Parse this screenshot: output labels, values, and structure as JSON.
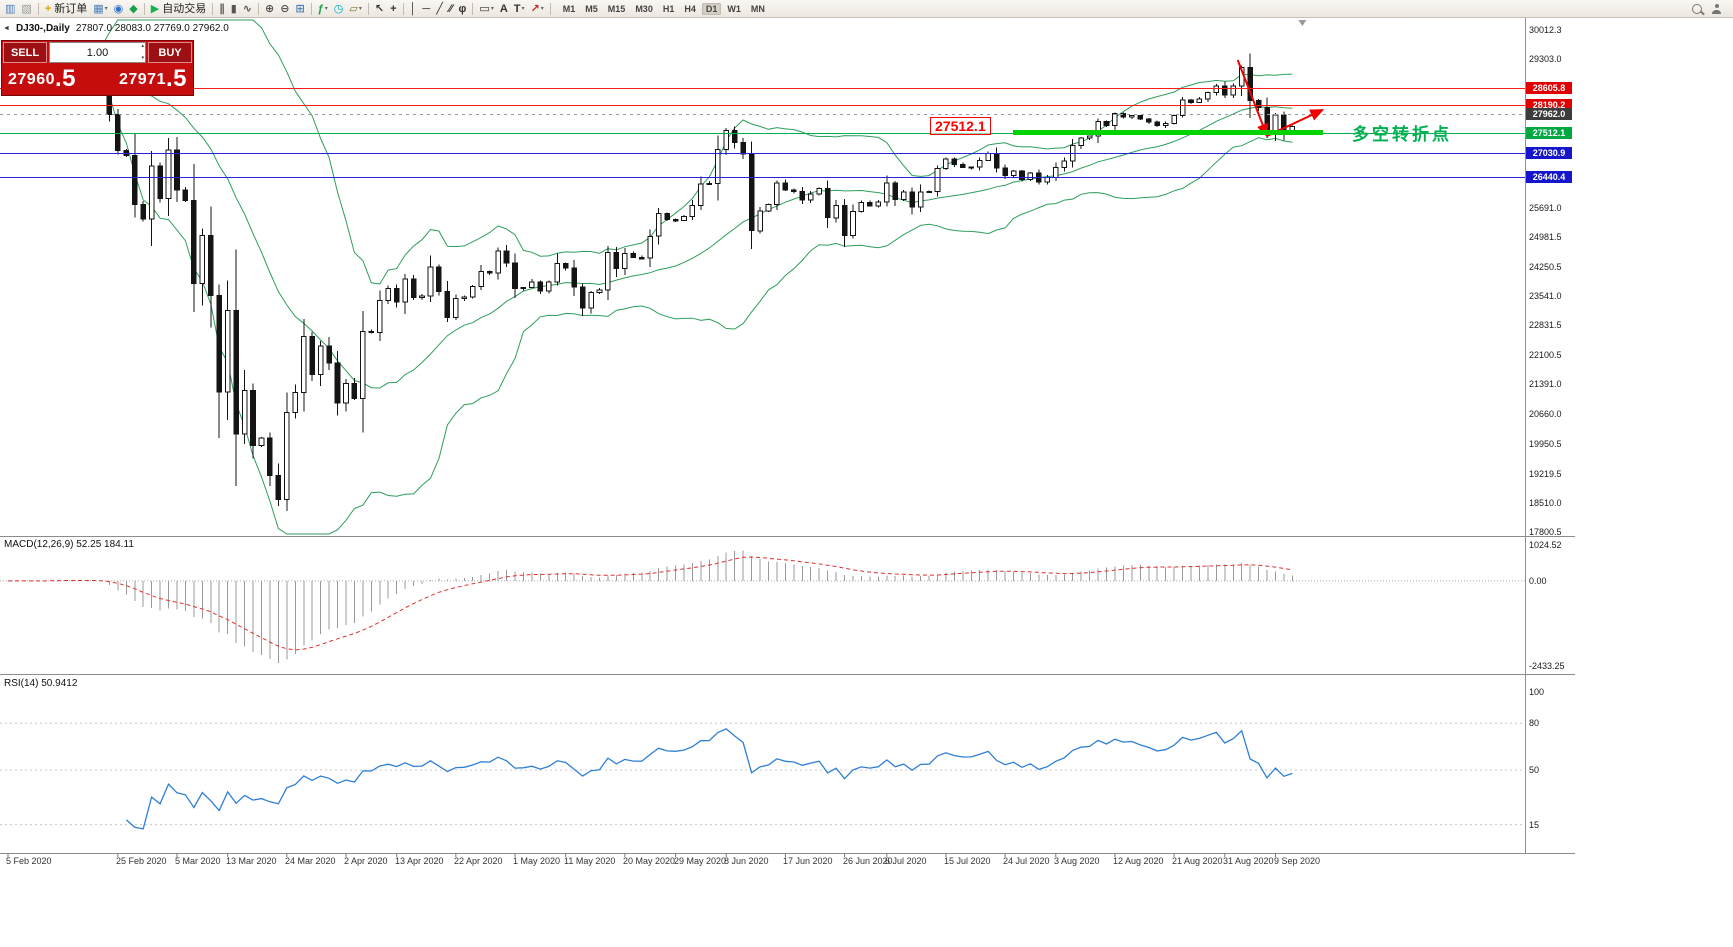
{
  "toolbar": {
    "items": [
      {
        "n": "symbol-chart-icon",
        "g": "▥",
        "c": "#4a7ebb"
      },
      {
        "n": "profile-icon",
        "g": "▧",
        "c": "#999999"
      },
      {
        "n": "separator"
      },
      {
        "n": "new-order-button",
        "g": "+",
        "c": "#e0a000",
        "l": "新订单"
      },
      {
        "n": "chart-windows-icon",
        "g": "▦",
        "c": "#4a7ebb",
        "caret": true
      },
      {
        "n": "quotes-icon",
        "g": "◉",
        "c": "#2f6fd0"
      },
      {
        "n": "algo-icon",
        "g": "◆",
        "c": "#18a04a"
      },
      {
        "n": "separator"
      },
      {
        "n": "autotrading-button",
        "g": "▶",
        "c": "#13b24c",
        "l": "自动交易"
      },
      {
        "n": "separator"
      },
      {
        "n": "bars-type-icon",
        "g": "∥",
        "c": "#555555"
      },
      {
        "n": "candles-type-icon",
        "g": "▮",
        "c": "#555555"
      },
      {
        "n": "line-type-icon",
        "g": "∿",
        "c": "#555555"
      },
      {
        "n": "separator"
      },
      {
        "n": "zoom-in-icon",
        "g": "⊕",
        "c": "#555555"
      },
      {
        "n": "zoom-out-icon",
        "g": "⊖",
        "c": "#555555"
      },
      {
        "n": "tile-windows-icon",
        "g": "⊞",
        "c": "#4a7ebb"
      },
      {
        "n": "separator"
      },
      {
        "n": "indicators-icon",
        "g": "ƒ",
        "c": "#18a04a",
        "caret": true
      },
      {
        "n": "period-clock-icon",
        "g": "◷",
        "c": "#00a8c8"
      },
      {
        "n": "templates-icon",
        "g": "▱",
        "c": "#8a6d3b",
        "caret": true
      },
      {
        "n": "separator"
      },
      {
        "n": "cursor-icon",
        "g": "↖",
        "c": "#333333"
      },
      {
        "n": "crosshair-icon",
        "g": "+",
        "c": "#333333"
      },
      {
        "n": "separator"
      },
      {
        "n": "vertical-line-icon",
        "g": "│",
        "c": "#333333"
      },
      {
        "n": "horizontal-line-icon",
        "g": "─",
        "c": "#333333"
      },
      {
        "n": "trendline-icon",
        "g": "╱",
        "c": "#333333"
      },
      {
        "n": "channel-icon",
        "g": "∕∕",
        "c": "#333333"
      },
      {
        "n": "fibonacci-icon",
        "g": "φ",
        "c": "#333333"
      },
      {
        "n": "separator"
      },
      {
        "n": "shapes-icon",
        "g": "▭",
        "c": "#333333",
        "caret": true
      },
      {
        "n": "text-icon",
        "g": "A",
        "c": "#333333"
      },
      {
        "n": "label-icon",
        "g": "T",
        "c": "#333333",
        "caret": true
      },
      {
        "n": "arrows-icon",
        "g": "↗",
        "c": "#cc2222",
        "caret": true
      },
      {
        "n": "separator"
      }
    ],
    "timeframes": [
      "M1",
      "M5",
      "M15",
      "M30",
      "H1",
      "H4",
      "D1",
      "W1",
      "MN"
    ],
    "active_timeframe": "D1"
  },
  "trade_panel": {
    "sell_label": "SELL",
    "buy_label": "BUY",
    "volume": "1.00",
    "sell_price_main": "27960",
    "sell_price_frac": ".5",
    "buy_price_main": "27971",
    "buy_price_frac": ".5"
  },
  "chart_header": {
    "marker": "◄",
    "title": "DJ30-,Daily",
    "ohlc": "27807.0 28083.0 27769.0 27962.0"
  },
  "annotations": {
    "support_price_label": "27512.1",
    "cn_note": "多空转折点"
  },
  "macd": {
    "label": "MACD(12,26,9) 52.25 184.11",
    "scale_max": "1024.52",
    "scale_zero": "0.00",
    "scale_min": "-2433.25"
  },
  "rsi": {
    "label": "RSI(14) 50.9412",
    "level_100": "100",
    "level_80": "80",
    "level_50": "50",
    "level_15": "15"
  },
  "chart_data": {
    "type": "candlestick",
    "symbol": "DJ30-",
    "timeframe": "Daily",
    "title": "DJ30-,Daily",
    "current_ohlc": {
      "open": 27807.0,
      "high": 28083.0,
      "low": 27769.0,
      "close": 27962.0
    },
    "y_range": [
      17800.5,
      30012.3
    ],
    "axis_labels": [
      "30012.3",
      "29303.0",
      "25691.0",
      "24981.5",
      "24250.5",
      "23541.0",
      "22831.5",
      "22100.5",
      "21391.0",
      "20660.0",
      "19950.5",
      "19219.5",
      "18510.0",
      "17800.5"
    ],
    "hlines": [
      {
        "price": 28605.8,
        "label": "28605.8",
        "color": "#ff1a1a",
        "badge": "#e00000"
      },
      {
        "price": 28190.2,
        "label": "28190.2",
        "color": "#ff1a1a",
        "badge": "#e00000"
      },
      {
        "price": 27962.0,
        "label": "27962.0",
        "color": "#9a9a9a",
        "badge": "#3c3c3c",
        "dash": true
      },
      {
        "price": 27512.1,
        "label": "27512.1",
        "color": "#00b050",
        "badge": "#00a843"
      },
      {
        "price": 27030.9,
        "label": "27030.9",
        "color": "#2424d8",
        "badge": "#1515cc"
      },
      {
        "price": 26440.4,
        "label": "26440.4",
        "color": "#2424d8",
        "badge": "#1515cc"
      }
    ],
    "closes": [
      29290,
      29380,
      29103,
      29277,
      29276,
      29551,
      29423,
      29398,
      29232,
      29348,
      29220,
      28992,
      27961,
      27081,
      26958,
      25767,
      25409,
      26703,
      25917,
      27091,
      26121,
      25865,
      23851,
      25018,
      23553,
      21201,
      23186,
      20188,
      21237,
      19899,
      20087,
      19174,
      18592,
      20705,
      21200,
      22552,
      21637,
      22327,
      21917,
      20944,
      21413,
      21053,
      22680,
      22654,
      23434,
      23719,
      23391,
      23950,
      23504,
      23538,
      24242,
      23650,
      23018,
      23476,
      23515,
      23775,
      24134,
      24102,
      24634,
      24346,
      23724,
      23749,
      23883,
      23665,
      23876,
      24331,
      24222,
      23765,
      23248,
      23625,
      23685,
      24597,
      24207,
      24576,
      24474,
      24465,
      24995,
      25548,
      25401,
      25383,
      25475,
      25743,
      26270,
      26282,
      27111,
      27572,
      27272,
      26990,
      25128,
      25605,
      25763,
      26290,
      26120,
      26080,
      25871,
      26025,
      26156,
      25445,
      25746,
      25016,
      25596,
      25813,
      25735,
      25827,
      26287,
      25890,
      26067,
      25706,
      26075,
      26086,
      26643,
      26870,
      26735,
      26672,
      26681,
      26840,
      27006,
      26652,
      26470,
      26585,
      26379,
      26539,
      26313,
      26428,
      26664,
      26828,
      27202,
      27387,
      27433,
      27791,
      27686,
      27977,
      27897,
      27931,
      27844,
      27778,
      27693,
      27740,
      27930,
      28308,
      28248,
      28332,
      28492,
      28654,
      28430,
      28645,
      29101,
      28293,
      28133,
      27501,
      27940,
      27535,
      27666
    ],
    "date_labels": [
      {
        "text": "5 Feb 2020",
        "i": 0
      },
      {
        "text": "25 Feb 2020",
        "i": 13
      },
      {
        "text": "5 Mar 2020",
        "i": 20
      },
      {
        "text": "13 Mar 2020",
        "i": 26
      },
      {
        "text": "24 Mar 2020",
        "i": 33
      },
      {
        "text": "2 Apr 2020",
        "i": 40
      },
      {
        "text": "13 Apr 2020",
        "i": 46
      },
      {
        "text": "22 Apr 2020",
        "i": 53
      },
      {
        "text": "1 May 2020",
        "i": 60
      },
      {
        "text": "11 May 2020",
        "i": 66
      },
      {
        "text": "20 May 2020",
        "i": 73
      },
      {
        "text": "29 May 2020",
        "i": 79
      },
      {
        "text": "8 Jun 2020",
        "i": 85
      },
      {
        "text": "17 Jun 2020",
        "i": 92
      },
      {
        "text": "26 Jun 2020",
        "i": 99
      },
      {
        "text": "6 Jul 2020",
        "i": 104
      },
      {
        "text": "15 Jul 2020",
        "i": 111
      },
      {
        "text": "24 Jul 2020",
        "i": 118
      },
      {
        "text": "3 Aug 2020",
        "i": 124
      },
      {
        "text": "12 Aug 2020",
        "i": 131
      },
      {
        "text": "21 Aug 2020",
        "i": 138
      },
      {
        "text": "31 Aug 2020",
        "i": 144
      },
      {
        "text": "9 Sep 2020",
        "i": 150
      }
    ],
    "indicators": [
      {
        "name": "Bollinger Bands",
        "params": "20,2",
        "color": "#2e9e5b"
      },
      {
        "name": "MACD",
        "params": "12,26,9",
        "display_values": [
          52.25,
          184.11
        ],
        "scale": [
          -2433.25,
          0,
          1024.52
        ]
      },
      {
        "name": "RSI",
        "params": "14",
        "display_value": 50.9412,
        "levels": [
          15,
          50,
          80,
          100
        ]
      }
    ]
  }
}
